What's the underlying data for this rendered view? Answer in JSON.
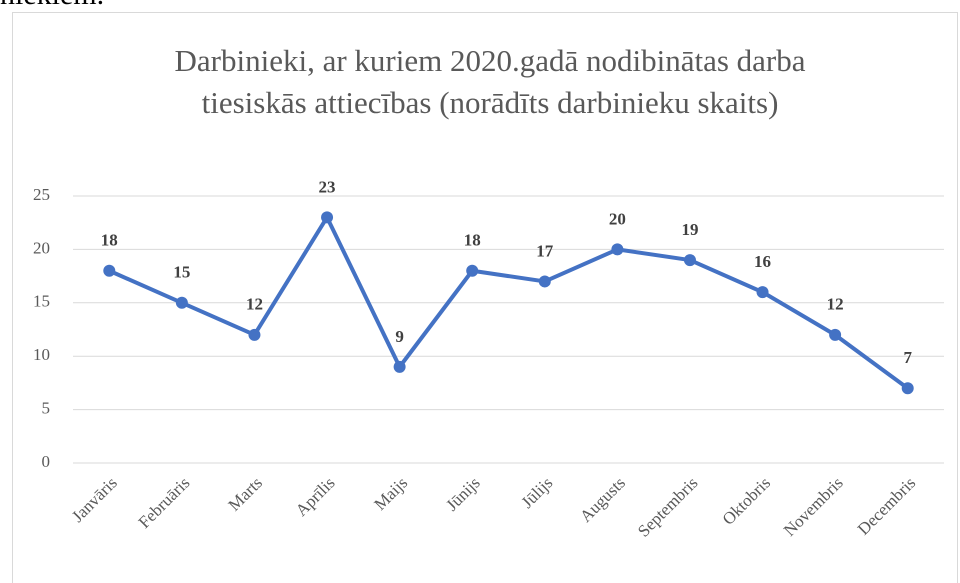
{
  "preceding_text": "niekiem.",
  "chart_data": {
    "type": "line",
    "title": "Darbinieki, ar kuriem 2020.gadā nodibinātas darba tiesiskās attiecības (norādīts darbinieku skaits)",
    "categories": [
      "Janvāris",
      "Februāris",
      "Marts",
      "Aprīlis",
      "Maijs",
      "Jūnijs",
      "Jūlijs",
      "Augusts",
      "Septembris",
      "Oktobris",
      "Novembris",
      "Decembris"
    ],
    "values": [
      18,
      15,
      12,
      23,
      9,
      18,
      17,
      20,
      19,
      16,
      12,
      7
    ],
    "color": "#4472c4",
    "ylim": [
      0,
      25
    ],
    "yticks": [
      0,
      5,
      10,
      15,
      20,
      25
    ],
    "grid": true
  }
}
